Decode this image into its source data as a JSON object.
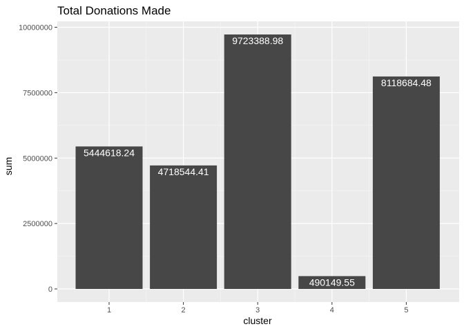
{
  "chart_data": {
    "type": "bar",
    "title": "Total Donations Made",
    "xlabel": "cluster",
    "ylabel": "sum",
    "categories": [
      "1",
      "2",
      "3",
      "4",
      "5"
    ],
    "values": [
      5444618.24,
      4718544.41,
      9723388.98,
      490149.55,
      8118684.48
    ],
    "value_labels": [
      "5444618.24",
      "4718544.41",
      "9723388.98",
      "490149.55",
      "8118684.48"
    ],
    "y_ticks": [
      0,
      2500000,
      5000000,
      7500000,
      10000000
    ],
    "y_tick_labels": [
      "0",
      "2500000",
      "5000000",
      "7500000",
      "10000000"
    ],
    "ylim": [
      0,
      10200000
    ],
    "grid": true,
    "legend": "none",
    "colors": {
      "bar": "#474747",
      "panel": "#ebebeb",
      "grid_major": "#ffffff",
      "grid_minor": "#f5f5f5"
    }
  }
}
